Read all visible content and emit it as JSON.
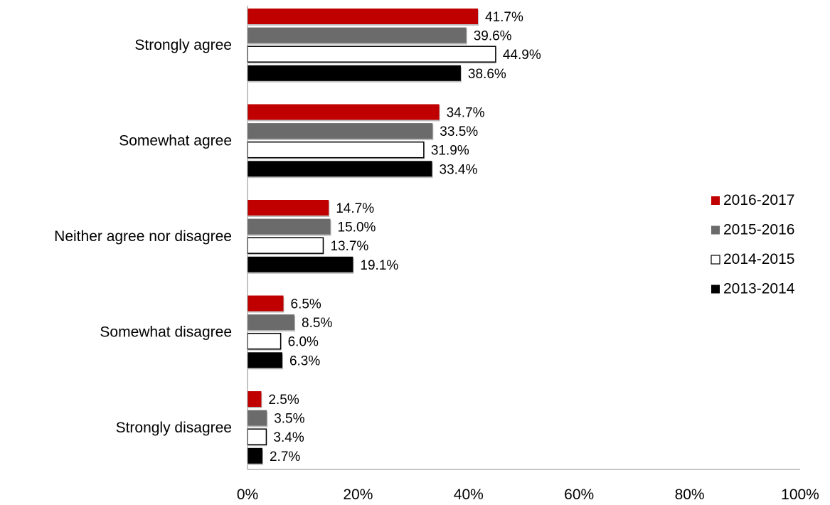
{
  "chart_data": {
    "type": "bar",
    "orientation": "horizontal",
    "categories": [
      "Strongly agree",
      "Somewhat agree",
      "Neither agree nor disagree",
      "Somewhat disagree",
      "Strongly disagree"
    ],
    "series": [
      {
        "name": "2016-2017",
        "color": "#c00000",
        "values": [
          41.7,
          34.7,
          14.7,
          6.5,
          2.5
        ],
        "labels": [
          "41.7%",
          "34.7%",
          "14.7%",
          "6.5%",
          "2.5%"
        ]
      },
      {
        "name": "2015-2016",
        "color": "#6b6b6b",
        "values": [
          39.6,
          33.5,
          15.0,
          8.5,
          3.5
        ],
        "labels": [
          "39.6%",
          "33.5%",
          "15.0%",
          "8.5%",
          "3.5%"
        ]
      },
      {
        "name": "2014-2015",
        "color": "#ffffff",
        "values": [
          44.9,
          31.9,
          13.7,
          6.0,
          3.4
        ],
        "labels": [
          "44.9%",
          "31.9%",
          "13.7%",
          "6.0%",
          "3.4%"
        ]
      },
      {
        "name": "2013-2014",
        "color": "#000000",
        "values": [
          38.6,
          33.4,
          19.1,
          6.3,
          2.7
        ],
        "labels": [
          "38.6%",
          "33.4%",
          "19.1%",
          "6.3%",
          "2.7%"
        ]
      }
    ],
    "xlim": [
      0,
      100
    ],
    "ticks": [
      "0%",
      "20%",
      "40%",
      "60%",
      "80%",
      "100%"
    ],
    "tick_values": [
      0,
      20,
      40,
      60,
      80,
      100
    ],
    "grid": false,
    "legend_position": "right"
  }
}
